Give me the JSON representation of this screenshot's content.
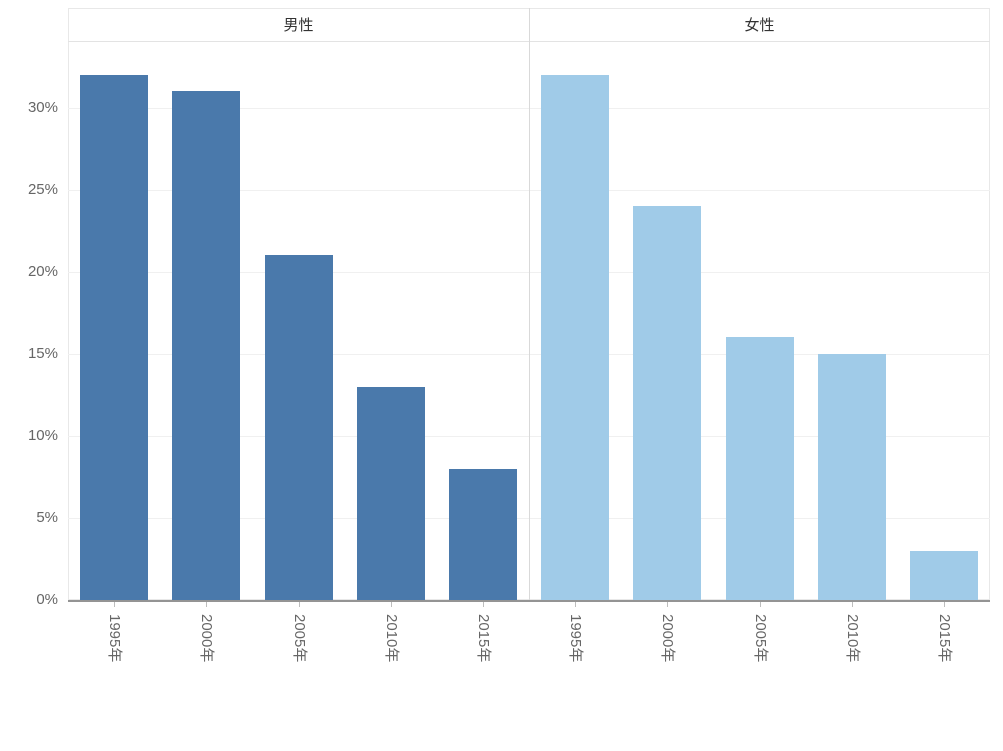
{
  "chart_data": {
    "type": "bar",
    "title": "",
    "facet_layout": "two side-by-side panels sharing one y axis",
    "categories": [
      "1995年",
      "2000年",
      "2005年",
      "2010年",
      "2015年"
    ],
    "series": [
      {
        "name": "男性",
        "color": "#4a79ab",
        "values": [
          32,
          31,
          21,
          13,
          8
        ]
      },
      {
        "name": "女性",
        "color": "#a0cbe8",
        "values": [
          32,
          24,
          16,
          15,
          3
        ]
      }
    ],
    "xlabel": "",
    "ylabel": "",
    "y_ticks": [
      0,
      5,
      10,
      15,
      20,
      25,
      30
    ],
    "y_tick_labels": [
      "0%",
      "5%",
      "10%",
      "15%",
      "20%",
      "25%",
      "30%"
    ],
    "ylim": [
      0,
      34
    ],
    "grid": true,
    "legend": "none",
    "colors": {
      "male_bar": "#4a79ab",
      "female_bar": "#a0cbe8",
      "grid_line": "#f0f0f0",
      "axis_line": "#949494",
      "panel_divider": "#d9d9d9",
      "tick_text": "#666666",
      "header_text": "#333333",
      "background": "#ffffff"
    }
  }
}
